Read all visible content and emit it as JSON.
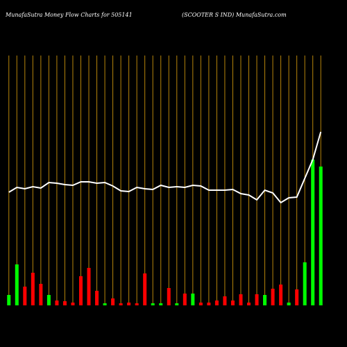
{
  "chart_data": {
    "type": "bar",
    "title": "MunafaSutra  Money Flow  Charts for 505141",
    "subtitle": "(SCOOTER                S IND) MunafaSutra.com",
    "categories": [
      null,
      null,
      null,
      null,
      null,
      null,
      null,
      null,
      null,
      null,
      null,
      null,
      null,
      null,
      null,
      null,
      null,
      null,
      null,
      null,
      null,
      null,
      null,
      null,
      null,
      null,
      null,
      null,
      null,
      null,
      null,
      null,
      null,
      null,
      null,
      null,
      null,
      null,
      null,
      null
    ],
    "values": [
      15,
      59,
      27,
      47,
      31,
      15,
      7,
      6,
      4,
      42,
      54,
      21,
      3,
      10,
      3,
      4,
      3,
      46,
      3,
      3,
      25,
      3,
      17,
      17,
      4,
      4,
      7,
      13,
      7,
      16,
      4,
      16,
      15,
      24,
      30,
      4,
      23,
      62,
      210,
      200
    ],
    "colors": [
      "#00ff00",
      "#00ff00",
      "#ff0000",
      "#ff0000",
      "#ff0000",
      "#00ff00",
      "#ff0000",
      "#ff0000",
      "#ff0000",
      "#ff0000",
      "#ff0000",
      "#ff0000",
      "#00ff00",
      "#ff0000",
      "#ff0000",
      "#ff0000",
      "#ff0000",
      "#ff0000",
      "#00ff00",
      "#00ff00",
      "#ff0000",
      "#00ff00",
      "#ff0000",
      "#00ff00",
      "#ff0000",
      "#ff0000",
      "#ff0000",
      "#ff0000",
      "#ff0000",
      "#ff0000",
      "#ff0000",
      "#ff0000",
      "#00ff00",
      "#ff0000",
      "#ff0000",
      "#00ff00",
      "#ff0000",
      "#00ff00",
      "#00ff00",
      "#00ff00"
    ],
    "line": {
      "color": "#ffffff",
      "values": [
        163,
        170,
        168,
        171,
        169,
        177,
        176,
        174,
        173,
        178,
        178,
        176,
        177,
        172,
        165,
        164,
        170,
        168,
        167,
        173,
        170,
        171,
        170,
        173,
        172,
        166,
        166,
        166,
        167,
        161,
        159,
        152,
        166,
        162,
        148,
        155,
        156,
        183,
        210,
        250
      ]
    },
    "ylim": [
      0,
      260
    ],
    "grid_color": "#b8860b",
    "grid": true
  }
}
